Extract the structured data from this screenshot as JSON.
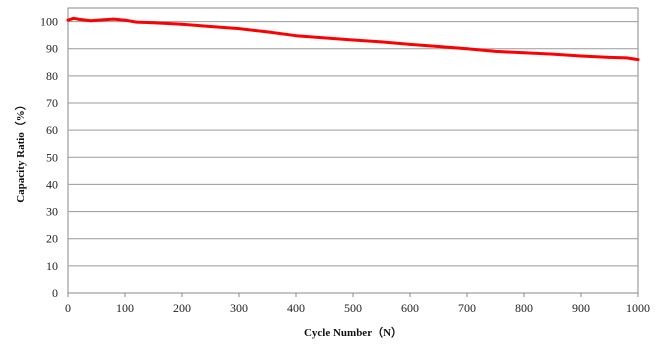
{
  "chart_data": {
    "type": "line",
    "title": "",
    "xlabel": "Cycle Number（N）",
    "ylabel": "Capacity Ratio（%）",
    "xlim": [
      0,
      1000
    ],
    "ylim": [
      0,
      105
    ],
    "x_ticks": [
      "0",
      "100",
      "200",
      "300",
      "400",
      "500",
      "600",
      "700",
      "800",
      "900",
      "1000"
    ],
    "y_ticks": [
      "0",
      "10",
      "20",
      "30",
      "40",
      "50",
      "60",
      "70",
      "80",
      "90",
      "100"
    ],
    "grid": true,
    "legend": "none",
    "series": [
      {
        "color": "#ff0000",
        "x": [
          0,
          10,
          20,
          40,
          60,
          80,
          100,
          120,
          150,
          200,
          250,
          300,
          350,
          400,
          450,
          500,
          550,
          600,
          650,
          700,
          750,
          800,
          850,
          900,
          950,
          980,
          1000
        ],
        "y": [
          100.5,
          101.2,
          100.8,
          100.3,
          100.6,
          100.9,
          100.5,
          99.8,
          99.6,
          99.0,
          98.2,
          97.4,
          96.2,
          94.8,
          94.0,
          93.2,
          92.5,
          91.6,
          90.8,
          90.0,
          89.0,
          88.5,
          88.0,
          87.3,
          86.8,
          86.6,
          86.0
        ]
      }
    ]
  }
}
